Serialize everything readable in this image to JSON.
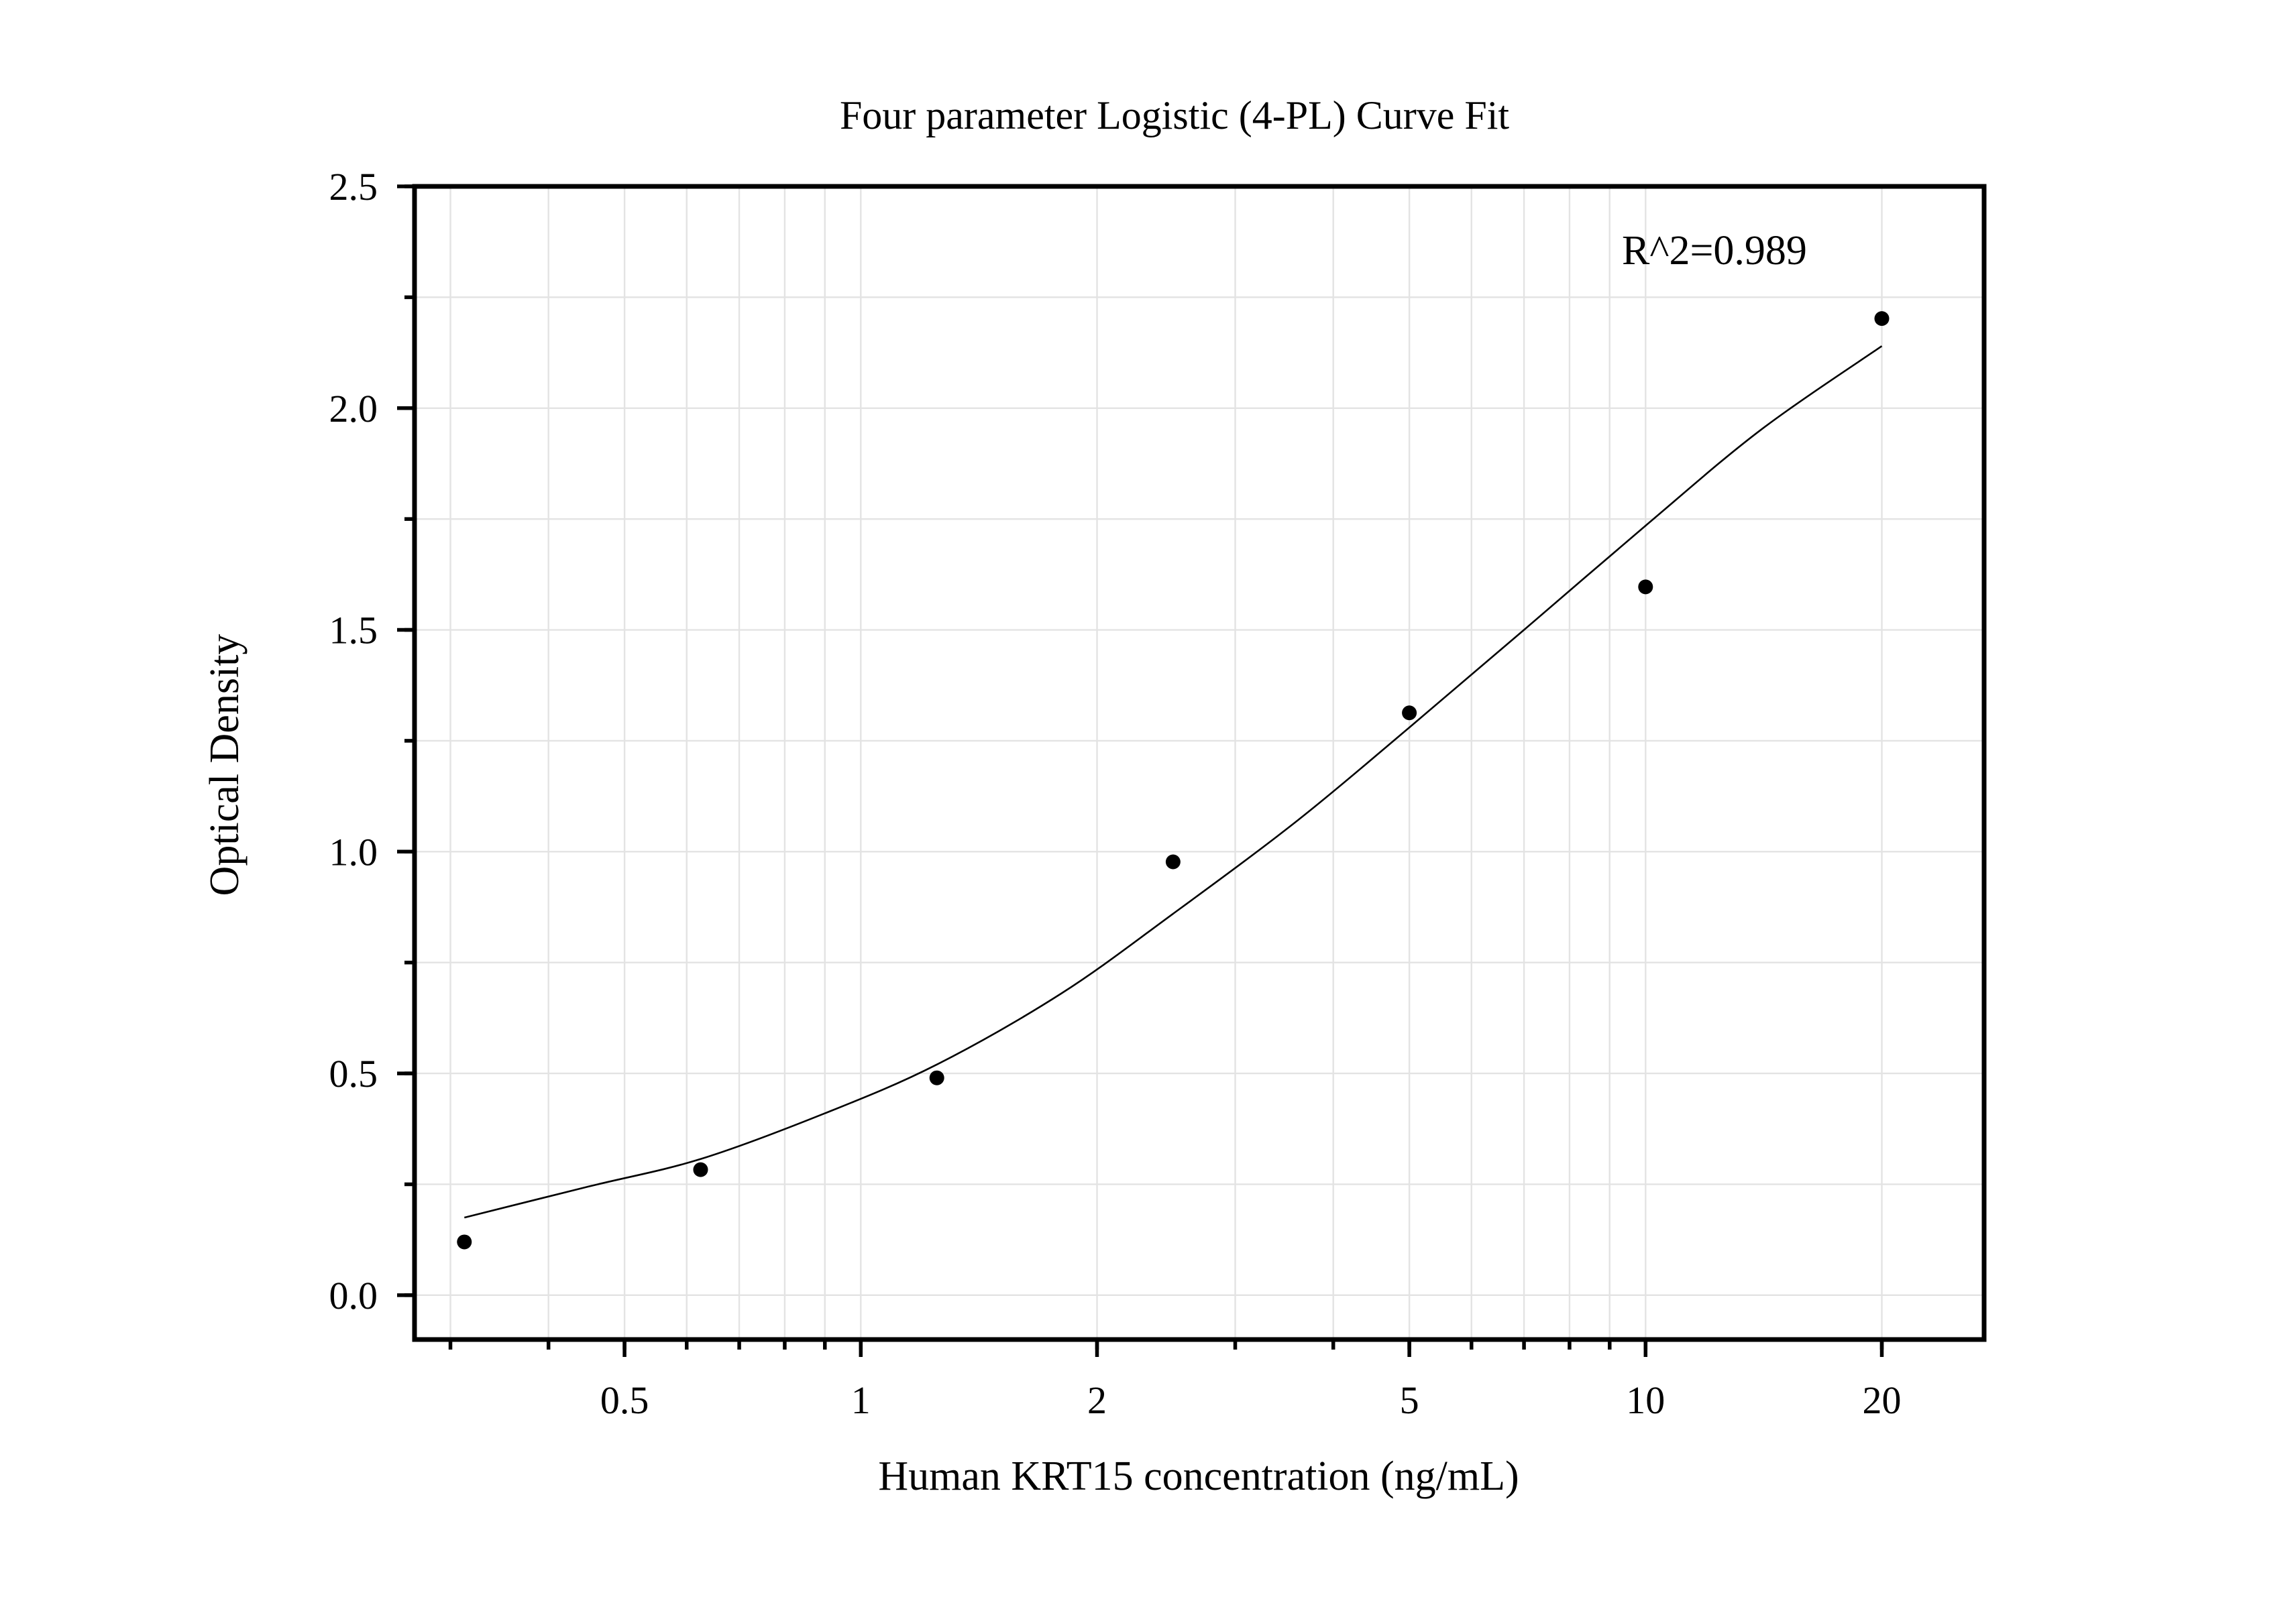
{
  "chart_data": {
    "type": "scatter",
    "title": "Four parameter Logistic (4-PL) Curve Fit",
    "xlabel": "Human KRT15 concentration (ng/mL)",
    "ylabel": "Optical Density",
    "xscale": "log",
    "xlim": [
      0.27,
      27
    ],
    "ylim": [
      -0.1,
      2.5
    ],
    "x_ticks": [
      {
        "value": 0.5,
        "label": "0.5"
      },
      {
        "value": 1,
        "label": "1"
      },
      {
        "value": 2,
        "label": "2"
      },
      {
        "value": 5,
        "label": "5"
      },
      {
        "value": 10,
        "label": "10"
      },
      {
        "value": 20,
        "label": "20"
      }
    ],
    "y_ticks": [
      {
        "value": 0.0,
        "label": "0.0"
      },
      {
        "value": 0.5,
        "label": "0.5"
      },
      {
        "value": 1.0,
        "label": "1.0"
      },
      {
        "value": 1.5,
        "label": "1.5"
      },
      {
        "value": 2.0,
        "label": "2.0"
      },
      {
        "value": 2.5,
        "label": "2.5"
      }
    ],
    "grid": true,
    "series": [
      {
        "kind": "points",
        "x": [
          0.3125,
          0.625,
          1.25,
          2.5,
          5,
          10,
          20
        ],
        "y": [
          0.12,
          0.283,
          0.49,
          0.977,
          1.313,
          1.597,
          2.202
        ]
      },
      {
        "kind": "fit-curve",
        "x": [
          0.3125,
          0.45,
          0.625,
          0.9,
          1.25,
          1.8,
          2.5,
          3.6,
          5,
          7,
          10,
          14,
          20
        ],
        "y": [
          0.175,
          0.245,
          0.307,
          0.41,
          0.52,
          0.68,
          0.86,
          1.07,
          1.28,
          1.5,
          1.735,
          1.95,
          2.14
        ]
      }
    ],
    "annotations": [
      {
        "text": "R^2=0.989",
        "x": 12,
        "y": 2.35
      }
    ]
  }
}
